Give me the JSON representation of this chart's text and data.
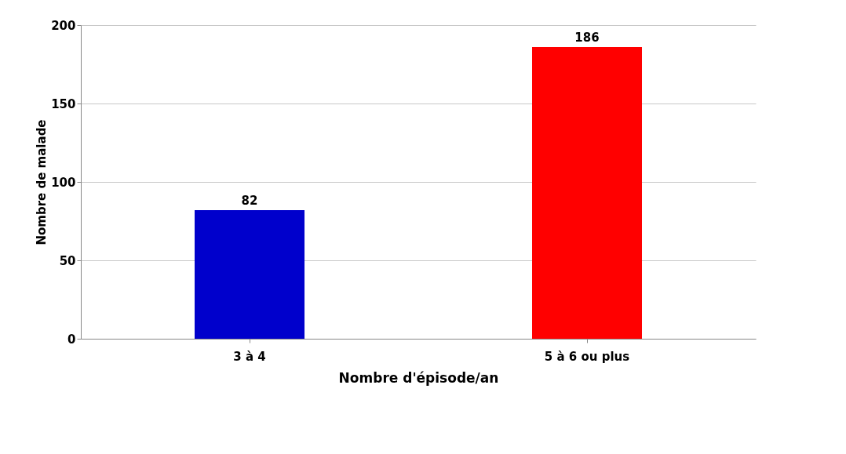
{
  "chart_data": {
    "type": "bar",
    "xlabel": "Nombre d'épisode/an",
    "ylabel": "Nombre de malade",
    "categories": [
      "3 à 4",
      "5 à 6 ou plus"
    ],
    "values": [
      82,
      186
    ],
    "colors": [
      "#0000cc",
      "#ff0000"
    ],
    "ylim": [
      0,
      200
    ],
    "yticks": [
      0,
      50,
      100,
      150,
      200
    ],
    "grid": "y",
    "data_labels": true
  }
}
